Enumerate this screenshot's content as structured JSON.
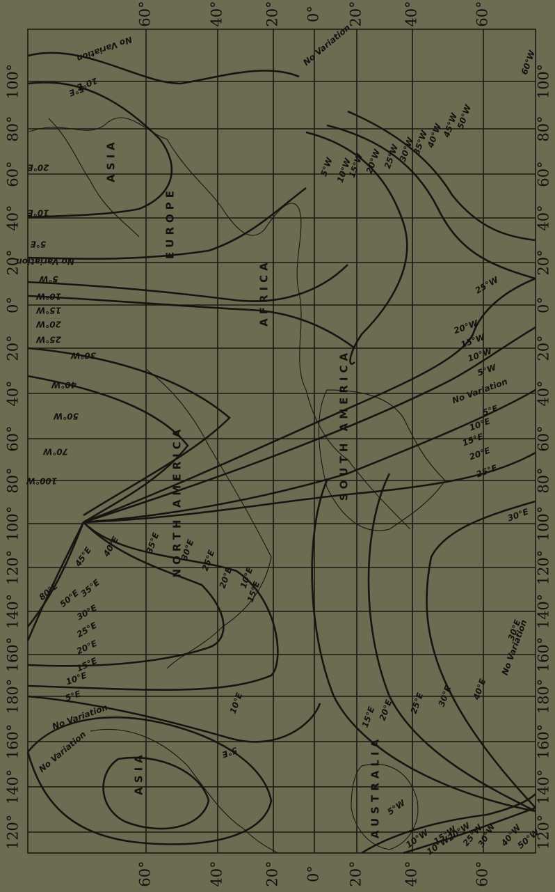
{
  "latitude_labels_top": [
    "60°",
    "40°",
    "20°",
    "0°",
    "20°",
    "40°",
    "60°"
  ],
  "latitude_labels_bottom": [
    "60°",
    "40°",
    "20°",
    "0°",
    "20°",
    "40°",
    "60°"
  ],
  "longitude_labels_left": [
    "100°",
    "80°",
    "60°",
    "40°",
    "20°",
    "0°",
    "20°",
    "40°",
    "60°",
    "80°",
    "100°",
    "120°",
    "140°",
    "160°",
    "180°",
    "160°",
    "140°",
    "120°"
  ],
  "longitude_labels_right": [
    "100°",
    "80°",
    "60°",
    "40°",
    "20°",
    "0°",
    "20°",
    "40°",
    "60°",
    "80°",
    "100°",
    "120°",
    "140°",
    "160°",
    "180°",
    "160°",
    "140°",
    "120°"
  ],
  "region_labels": [
    "ASIA",
    "EUROPE",
    "AFRICA",
    "NORTH AMERICA",
    "SOUTH AMERICA",
    "ASIA",
    "AUSTRALIA"
  ],
  "isogonic_labels": [
    "No Variation",
    "5°E",
    "10°E",
    "No Variation",
    "10°E",
    "20°E",
    "5°E",
    "No Variation",
    "5°W",
    "10°W",
    "15°W",
    "20°W",
    "25°W",
    "30°W",
    "40°W",
    "50°W",
    "70°W",
    "100°W",
    "5°W",
    "10°W",
    "15°W",
    "20°W",
    "25°W",
    "30°W",
    "35°W",
    "40°W",
    "45°W",
    "50°W",
    "60°W",
    "25°W",
    "20°W",
    "15°W",
    "10°W",
    "5°W",
    "No Variation",
    "5°E",
    "10°E",
    "15°E",
    "20°E",
    "25°E",
    "30°E",
    "10°E",
    "15°E",
    "20°E",
    "25°E",
    "30°E",
    "35°E",
    "40°E",
    "45°E",
    "50°E",
    "80°E",
    "35°E",
    "30°E",
    "25°E",
    "20°E",
    "15°E",
    "10°E",
    "5°E",
    "No Variation",
    "No Variation",
    "5°E",
    "10°E",
    "15°E",
    "20°E",
    "25°E",
    "30°E",
    "40°E",
    "30°E",
    "No Variation",
    "5°W",
    "10°W",
    "15°W",
    "20°W",
    "25°W",
    "30°W",
    "40°W",
    "50°W",
    "10°W"
  ]
}
